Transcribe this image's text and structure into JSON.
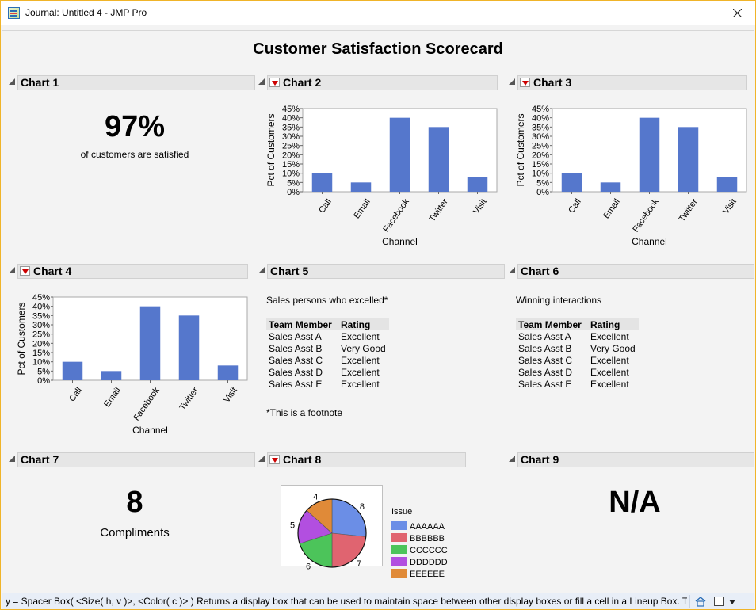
{
  "window": {
    "title": "Journal: Untitled 4 - JMP Pro",
    "minimize_label": "—",
    "maximize_label": "☐",
    "close_label": "✕"
  },
  "scorecard": {
    "title": "Customer Satisfaction Scorecard"
  },
  "panels": {
    "chart1": {
      "title": "Chart 1",
      "value": "97%",
      "caption": "of customers are satisfied"
    },
    "chart2": {
      "title": "Chart 2"
    },
    "chart3": {
      "title": "Chart 3"
    },
    "chart4": {
      "title": "Chart 4"
    },
    "chart5": {
      "title": "Chart 5",
      "caption": "Sales persons who excelled*",
      "footnote": "*This is a footnote",
      "headers": [
        "Team Member",
        "Rating"
      ],
      "rows": [
        [
          "Sales Asst A",
          "Excellent"
        ],
        [
          "Sales Asst B",
          "Very Good"
        ],
        [
          "Sales Asst C",
          "Excellent"
        ],
        [
          "Sales Asst D",
          "Excellent"
        ],
        [
          "Sales Asst E",
          "Excellent"
        ]
      ]
    },
    "chart6": {
      "title": "Chart 6",
      "caption": "Winning interactions",
      "headers": [
        "Team Member",
        "Rating"
      ],
      "rows": [
        [
          "Sales Asst A",
          "Excellent"
        ],
        [
          "Sales Asst B",
          "Very Good"
        ],
        [
          "Sales Asst C",
          "Excellent"
        ],
        [
          "Sales Asst D",
          "Excellent"
        ],
        [
          "Sales Asst E",
          "Excellent"
        ]
      ]
    },
    "chart7": {
      "title": "Chart 7",
      "value": "8",
      "caption": "Compliments"
    },
    "chart8": {
      "title": "Chart 8"
    },
    "chart9": {
      "title": "Chart 9",
      "value": "N/A"
    }
  },
  "chart_data": [
    {
      "type": "bar",
      "panel": "chart2",
      "categories": [
        "Call",
        "Email",
        "Facebook",
        "Twitter",
        "Visit"
      ],
      "values": [
        10,
        5,
        40,
        35,
        8
      ],
      "xlabel": "Channel",
      "ylabel": "Pct of Customers",
      "ylim": [
        0,
        45
      ],
      "yticks": [
        "0%",
        "5%",
        "10%",
        "15%",
        "20%",
        "25%",
        "30%",
        "35%",
        "40%",
        "45%"
      ],
      "color": "#5577cc"
    },
    {
      "type": "bar",
      "panel": "chart3",
      "categories": [
        "Call",
        "Email",
        "Facebook",
        "Twitter",
        "Visit"
      ],
      "values": [
        10,
        5,
        40,
        35,
        8
      ],
      "xlabel": "Channel",
      "ylabel": "Pct of Customers",
      "ylim": [
        0,
        45
      ],
      "yticks": [
        "0%",
        "5%",
        "10%",
        "15%",
        "20%",
        "25%",
        "30%",
        "35%",
        "40%",
        "45%"
      ],
      "color": "#5577cc"
    },
    {
      "type": "bar",
      "panel": "chart4",
      "categories": [
        "Call",
        "Email",
        "Facebook",
        "Twitter",
        "Visit"
      ],
      "values": [
        10,
        5,
        40,
        35,
        8
      ],
      "xlabel": "Channel",
      "ylabel": "Pct of Customers",
      "ylim": [
        0,
        45
      ],
      "yticks": [
        "0%",
        "5%",
        "10%",
        "15%",
        "20%",
        "25%",
        "30%",
        "35%",
        "40%",
        "45%"
      ],
      "color": "#5577cc"
    },
    {
      "type": "pie",
      "panel": "chart8",
      "legend_title": "Issue",
      "categories": [
        "AAAAAA",
        "BBBBBB",
        "CCCCCC",
        "DDDDDD",
        "EEEEEE"
      ],
      "values": [
        8,
        7,
        6,
        5,
        4
      ],
      "colors": [
        "#6b8ee6",
        "#e06470",
        "#4cc45a",
        "#b24fe0",
        "#e08a38"
      ]
    }
  ],
  "statusbar": {
    "text": "y = Spacer Box( <Size( h, v )>, <Color( c )> )  Returns a display box that can be used to maintain space between other display boxes or fill a cell in a Lineup Box. The"
  }
}
